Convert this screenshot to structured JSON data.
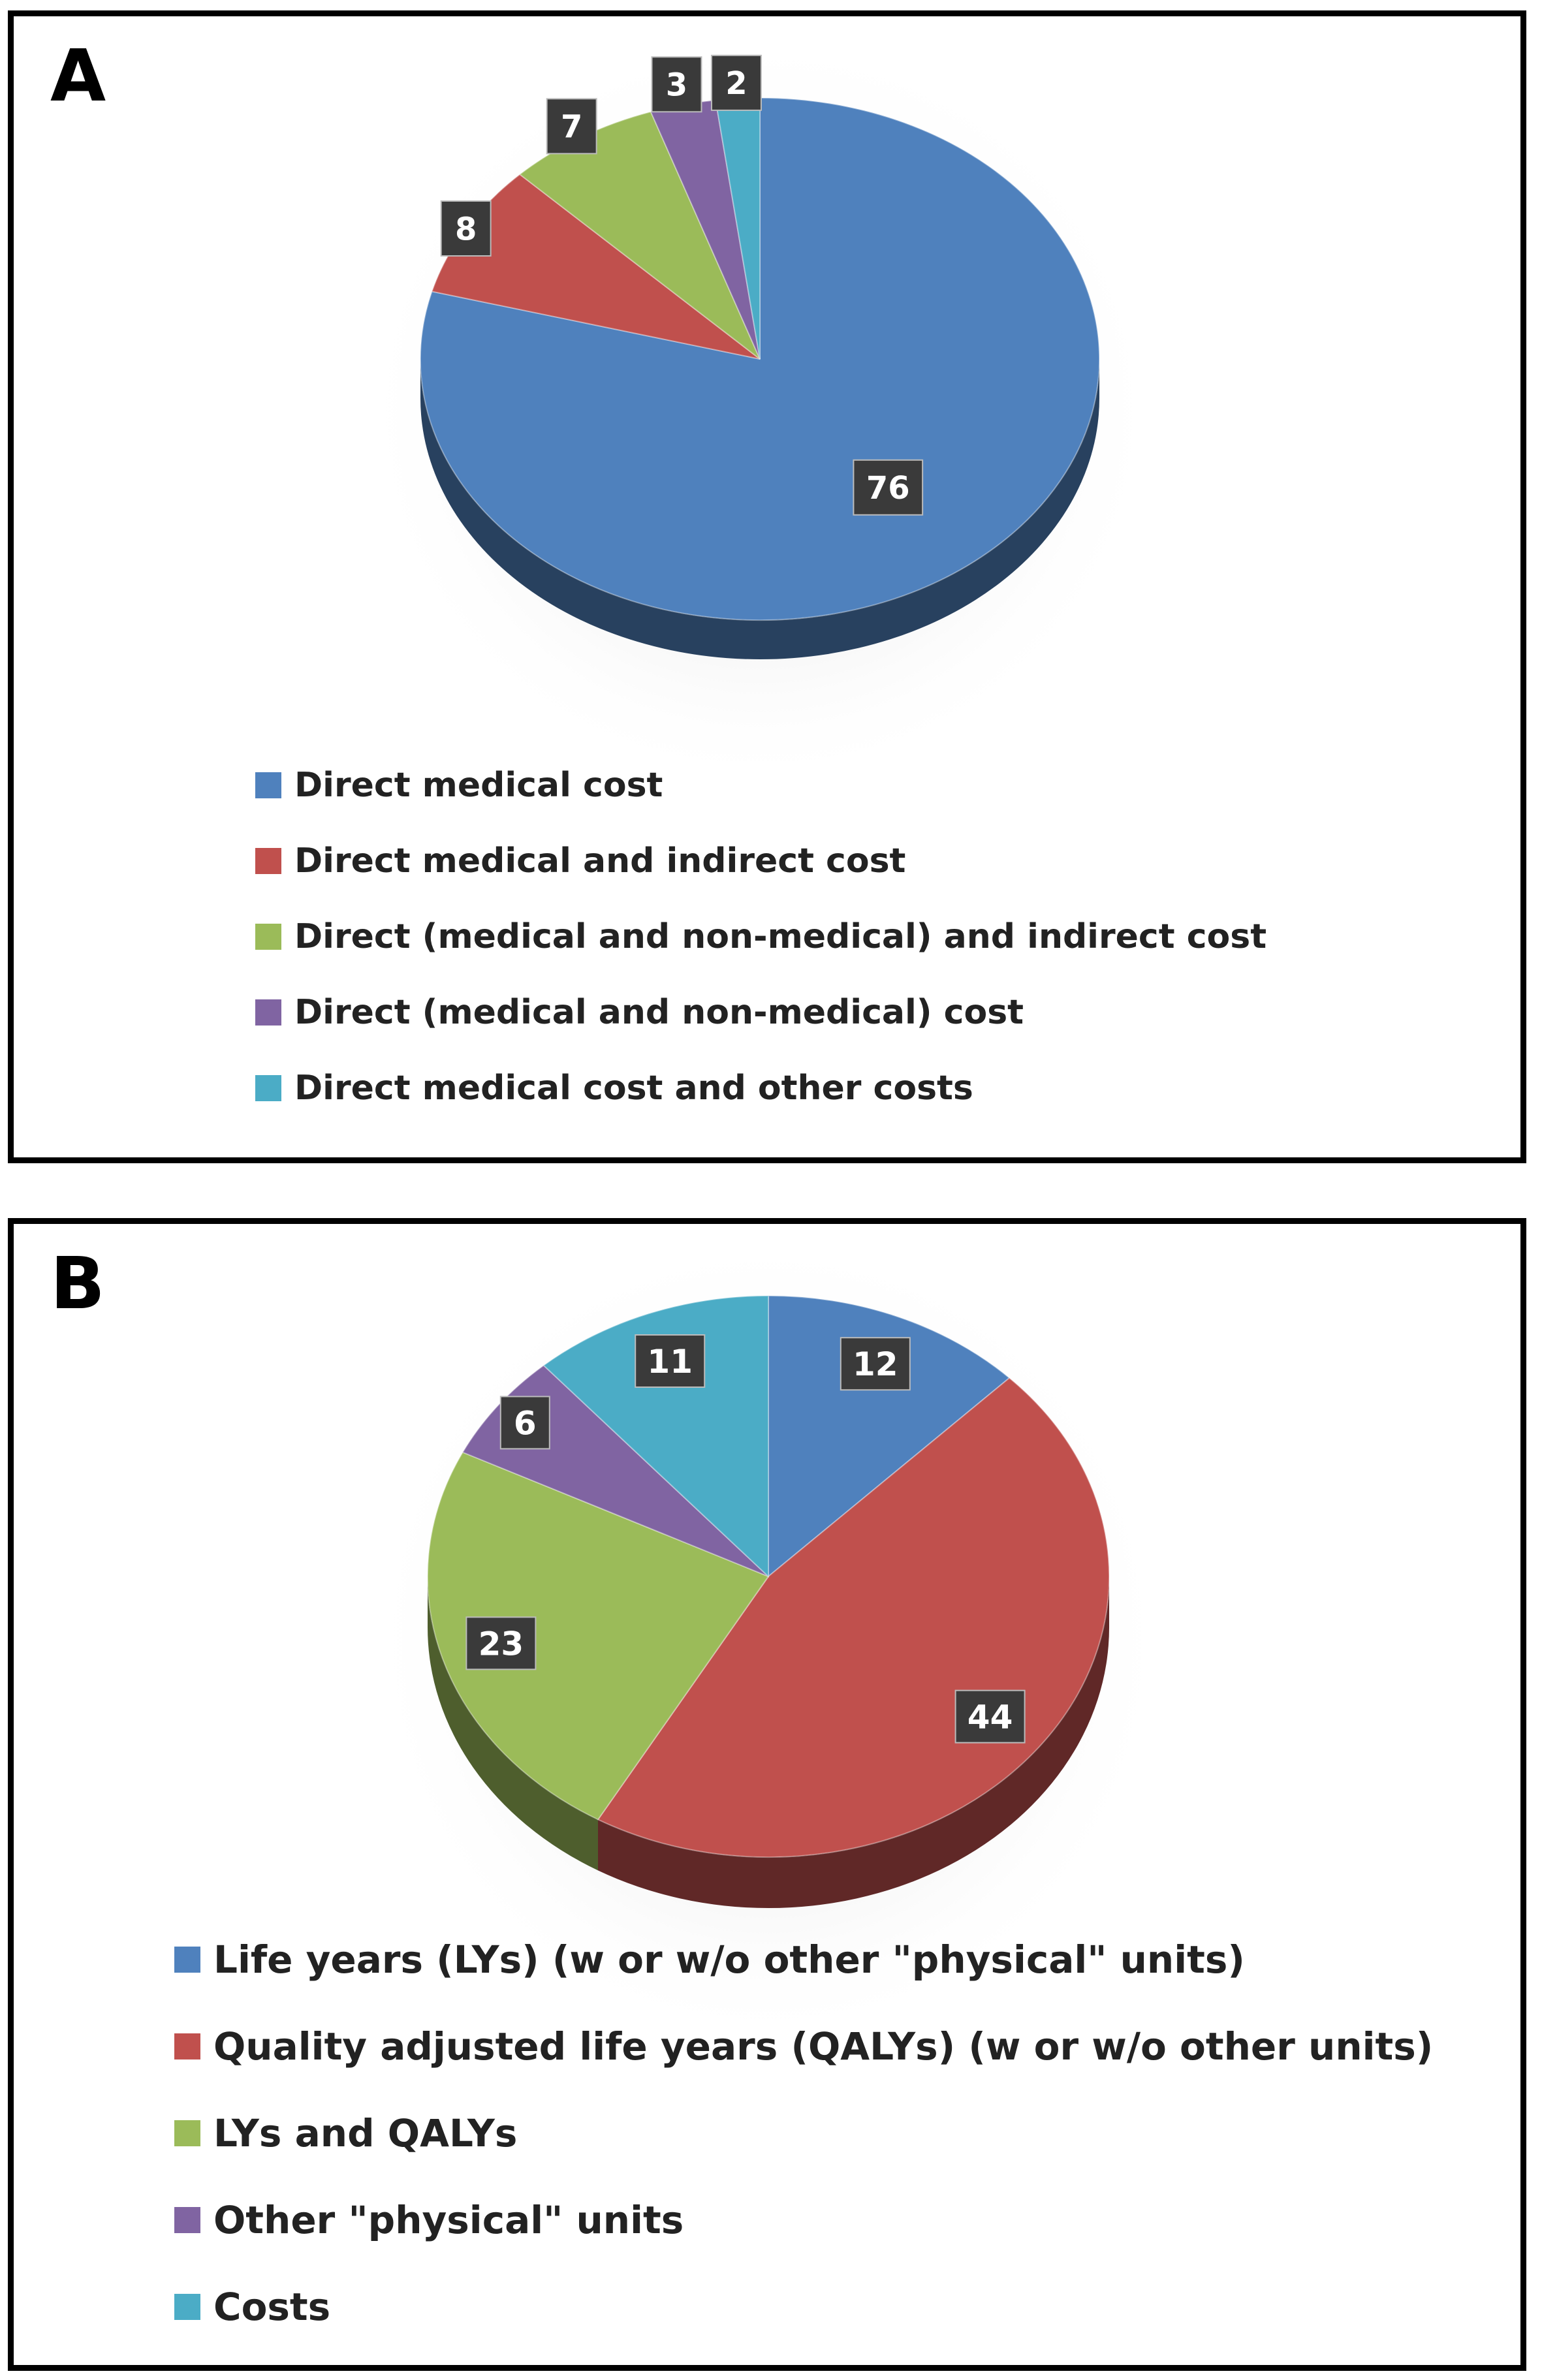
{
  "chart_data": [
    {
      "type": "pie",
      "panel_label": "A",
      "categories": [
        "Direct medical cost",
        "Direct medical and indirect cost",
        "Direct (medical and non-medical) and indirect cost",
        "Direct (medical and non-medical) cost",
        "Direct medical cost and other costs"
      ],
      "values": [
        76,
        8,
        7,
        3,
        2
      ],
      "data_labels": [
        "76",
        "8",
        "7",
        "3",
        "2"
      ],
      "colors": [
        "#4f81bd",
        "#c0504d",
        "#9bbb59",
        "#8064a2",
        "#4bacc6"
      ],
      "style": "3d",
      "legend_position": "bottom"
    },
    {
      "type": "pie",
      "panel_label": "B",
      "categories": [
        "Life years (LYs) (w or w/o other \"physical\" units)",
        "Quality adjusted life years (QALYs) (w or w/o other units)",
        "LYs and QALYs",
        "Other \"physical\" units",
        "Costs"
      ],
      "values": [
        12,
        44,
        23,
        6,
        11
      ],
      "data_labels": [
        "12",
        "44",
        "23",
        "6",
        "11"
      ],
      "colors": [
        "#4f81bd",
        "#c0504d",
        "#9bbb59",
        "#8064a2",
        "#4bacc6"
      ],
      "style": "3d",
      "legend_position": "bottom"
    }
  ]
}
